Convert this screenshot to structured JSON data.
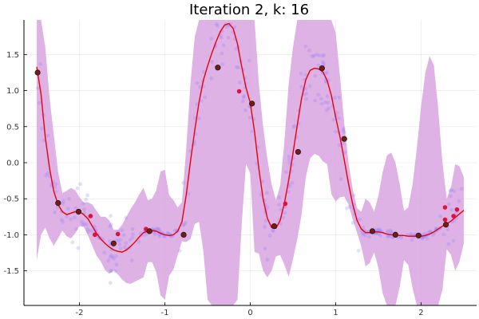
{
  "chart_data": {
    "type": "scatter",
    "title": "Iteration 2, k: 16",
    "xlabel": "",
    "ylabel": "",
    "xlim": [
      -2.65,
      2.65
    ],
    "ylim": [
      -1.98,
      1.98
    ],
    "x_ticks": [
      -2,
      -1,
      0,
      1,
      2
    ],
    "x_tick_labels": [
      "-2",
      "-1",
      "0",
      "1",
      "2"
    ],
    "y_ticks": [
      -1.5,
      -1.0,
      -0.5,
      0.0,
      0.5,
      1.0,
      1.5
    ],
    "y_tick_labels": [
      "-1.5",
      "-1.0",
      "-0.5",
      "0.0",
      "0.5",
      "1.0",
      "1.5"
    ],
    "grid": true,
    "legend": "none",
    "colors": {
      "mean_line": "#e8000b",
      "confidence_band": "#d9a4e0",
      "background_points": "#8a7dff",
      "observed_points": "#e0103a",
      "knot_points": "#7a1a12"
    },
    "series": [
      {
        "type": "line",
        "x": [
          -2.5,
          -2.45,
          -2.4,
          -2.35,
          -2.3,
          -2.25,
          -2.2,
          -2.15,
          -2.1,
          -2.05,
          -2.0,
          -1.95,
          -1.9,
          -1.85,
          -1.8,
          -1.75,
          -1.7,
          -1.65,
          -1.6,
          -1.55,
          -1.5,
          -1.45,
          -1.4,
          -1.35,
          -1.3,
          -1.25,
          -1.2,
          -1.15,
          -1.1,
          -1.05,
          -1.0,
          -0.95,
          -0.9,
          -0.85,
          -0.8,
          -0.75,
          -0.7,
          -0.65,
          -0.6,
          -0.55,
          -0.5,
          -0.45,
          -0.4,
          -0.35,
          -0.3,
          -0.25,
          -0.2,
          -0.15,
          -0.1,
          -0.05,
          0.0,
          0.05,
          0.1,
          0.15,
          0.2,
          0.25,
          0.3,
          0.35,
          0.4,
          0.45,
          0.5,
          0.55,
          0.6,
          0.65,
          0.7,
          0.75,
          0.8,
          0.85,
          0.9,
          0.95,
          1.0,
          1.05,
          1.1,
          1.15,
          1.2,
          1.25,
          1.3,
          1.35,
          1.4,
          1.45,
          1.5,
          1.55,
          1.6,
          1.65,
          1.7,
          1.75,
          1.8,
          1.85,
          1.9,
          1.95,
          2.0,
          2.05,
          2.1,
          2.15,
          2.2,
          2.25,
          2.3,
          2.35,
          2.4,
          2.45,
          2.5
        ],
        "y": [
          1.33,
          0.95,
          0.35,
          -0.08,
          -0.4,
          -0.58,
          -0.68,
          -0.72,
          -0.7,
          -0.68,
          -0.68,
          -0.72,
          -0.78,
          -0.88,
          -0.98,
          -1.06,
          -1.12,
          -1.17,
          -1.21,
          -1.23,
          -1.24,
          -1.21,
          -1.16,
          -1.1,
          -1.03,
          -0.97,
          -0.95,
          -0.94,
          -0.95,
          -0.98,
          -1.0,
          -1.01,
          -1.0,
          -0.95,
          -0.82,
          -0.45,
          0.02,
          0.45,
          0.84,
          1.14,
          1.34,
          1.52,
          1.68,
          1.82,
          1.91,
          1.93,
          1.86,
          1.65,
          1.33,
          1.04,
          0.83,
          0.43,
          -0.08,
          -0.5,
          -0.77,
          -0.9,
          -0.91,
          -0.8,
          -0.56,
          -0.24,
          0.13,
          0.52,
          0.89,
          1.15,
          1.28,
          1.31,
          1.3,
          1.26,
          1.14,
          0.93,
          0.63,
          0.36,
          0.04,
          -0.29,
          -0.58,
          -0.8,
          -0.92,
          -0.97,
          -0.97,
          -0.96,
          -0.96,
          -0.97,
          -0.99,
          -1.0,
          -1.0,
          -1.01,
          -1.01,
          -1.02,
          -1.02,
          -1.02,
          -1.02,
          -1.01,
          -0.99,
          -0.96,
          -0.92,
          -0.88,
          -0.85,
          -0.81,
          -0.76,
          -0.71,
          -0.66
        ]
      },
      {
        "type": "band",
        "x": [
          -2.5,
          -2.45,
          -2.4,
          -2.35,
          -2.3,
          -2.25,
          -2.2,
          -2.15,
          -2.1,
          -2.05,
          -2.0,
          -1.95,
          -1.9,
          -1.85,
          -1.8,
          -1.75,
          -1.7,
          -1.65,
          -1.6,
          -1.55,
          -1.5,
          -1.45,
          -1.4,
          -1.35,
          -1.3,
          -1.25,
          -1.2,
          -1.15,
          -1.1,
          -1.05,
          -1.0,
          -0.95,
          -0.9,
          -0.85,
          -0.8,
          -0.75,
          -0.7,
          -0.65,
          -0.6,
          -0.55,
          -0.5,
          -0.45,
          -0.4,
          -0.35,
          -0.3,
          -0.25,
          -0.2,
          -0.15,
          -0.1,
          -0.05,
          0.0,
          0.05,
          0.1,
          0.15,
          0.2,
          0.25,
          0.3,
          0.35,
          0.4,
          0.45,
          0.5,
          0.55,
          0.6,
          0.65,
          0.7,
          0.75,
          0.8,
          0.85,
          0.9,
          0.95,
          1.0,
          1.05,
          1.1,
          1.15,
          1.2,
          1.25,
          1.3,
          1.35,
          1.4,
          1.45,
          1.5,
          1.55,
          1.6,
          1.65,
          1.7,
          1.75,
          1.8,
          1.85,
          1.9,
          1.95,
          2.0,
          2.05,
          2.1,
          2.15,
          2.2,
          2.25,
          2.3,
          2.35,
          2.4,
          2.45,
          2.5
        ],
        "upper": [
          2.5,
          2.5,
          1.6,
          0.9,
          0.38,
          -0.13,
          -0.42,
          -0.39,
          -0.35,
          -0.38,
          -0.48,
          -0.55,
          -0.55,
          -0.58,
          -0.67,
          -0.75,
          -0.75,
          -0.8,
          -0.93,
          -0.93,
          -0.86,
          -0.75,
          -0.64,
          -0.55,
          -0.44,
          -0.35,
          -0.52,
          -0.5,
          -0.38,
          -0.12,
          -0.1,
          -0.45,
          -0.52,
          -0.62,
          -0.55,
          0.2,
          1.1,
          1.75,
          2.5,
          2.5,
          2.5,
          2.5,
          2.5,
          2.5,
          2.5,
          2.5,
          2.5,
          2.5,
          2.5,
          2.5,
          2.5,
          2.1,
          1.1,
          0.5,
          0.05,
          -0.3,
          -0.52,
          -0.32,
          0.3,
          1.1,
          1.6,
          2.1,
          2.5,
          2.5,
          2.5,
          2.5,
          2.5,
          2.5,
          2.5,
          2.3,
          1.8,
          1.2,
          0.55,
          0.0,
          -0.37,
          -0.63,
          -0.68,
          -0.5,
          -0.55,
          -0.68,
          -0.46,
          -0.13,
          0.1,
          0.14,
          0.0,
          -0.3,
          -0.67,
          -0.62,
          -0.3,
          0.2,
          0.78,
          1.25,
          1.48,
          1.35,
          0.75,
          0.0,
          -0.5,
          -0.34,
          -0.02,
          -0.05,
          -0.2
        ],
        "lower": [
          -1.35,
          -1.0,
          -0.9,
          -1.05,
          -1.15,
          -1.05,
          -0.94,
          -1.02,
          -1.05,
          -0.98,
          -0.88,
          -0.89,
          -1.01,
          -1.15,
          -1.29,
          -1.37,
          -1.49,
          -1.54,
          -1.49,
          -1.55,
          -1.62,
          -1.67,
          -1.68,
          -1.65,
          -1.62,
          -1.59,
          -1.38,
          -1.38,
          -1.52,
          -1.84,
          -1.9,
          -1.57,
          -1.48,
          -1.28,
          -1.09,
          -1.1,
          -1.06,
          -0.85,
          -0.82,
          -1.22,
          -1.9,
          -2.2,
          -2.2,
          -2.2,
          -2.2,
          -2.2,
          -2.2,
          -1.9,
          -0.85,
          -0.02,
          -0.15,
          -1.24,
          -1.26,
          -1.5,
          -1.59,
          -1.5,
          -1.3,
          -1.28,
          -1.42,
          -1.58,
          -1.34,
          -1.06,
          -0.72,
          -0.2,
          0.06,
          0.12,
          0.1,
          0.02,
          -0.02,
          -0.44,
          -0.54,
          -0.48,
          -0.47,
          -0.58,
          -0.79,
          -0.97,
          -1.16,
          -1.44,
          -1.39,
          -1.24,
          -1.46,
          -1.81,
          -2.08,
          -2.14,
          -2.0,
          -1.72,
          -1.35,
          -1.42,
          -1.74,
          -2.2,
          -2.2,
          -2.2,
          -2.2,
          -2.2,
          -2.2,
          -1.76,
          -1.2,
          -1.28,
          -1.5,
          -1.37,
          -1.12
        ]
      },
      {
        "type": "scatter",
        "x": [
          -2.49,
          -2.25,
          -2.01,
          -1.6,
          -1.18,
          -0.78,
          -0.38,
          0.02,
          0.28,
          0.56,
          0.84,
          1.1,
          1.43,
          1.7,
          1.97,
          2.29
        ],
        "y": [
          1.25,
          -0.56,
          -0.68,
          -1.12,
          -0.95,
          -1.0,
          1.32,
          0.82,
          -0.88,
          0.15,
          1.31,
          0.33,
          -0.95,
          -1.0,
          -1.01,
          -0.86
        ]
      },
      {
        "type": "scatter",
        "x": [
          -1.87,
          -1.82,
          -1.55,
          -1.22,
          -0.13,
          0.41,
          2.28,
          2.28,
          2.38,
          2.42
        ],
        "y": [
          -0.74,
          -1.0,
          -0.99,
          -0.92,
          0.99,
          -0.57,
          -0.62,
          -0.79,
          -0.74,
          -0.65
        ]
      }
    ]
  }
}
